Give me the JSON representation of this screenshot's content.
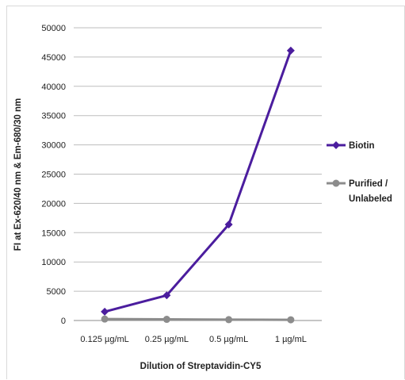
{
  "chart_data": {
    "type": "line",
    "categories": [
      "0.125 µg/mL",
      "0.25 µg/mL",
      "0.5 µg/mL",
      "1 µg/mL"
    ],
    "series": [
      {
        "name": "Biotin",
        "color": "#4b1d9e",
        "marker": "diamond",
        "values": [
          1500,
          4300,
          16400,
          46100
        ]
      },
      {
        "name_lines": [
          "Purified /",
          "Unlabeled"
        ],
        "color": "#8c8c8c",
        "marker": "circle",
        "values": [
          250,
          200,
          150,
          120
        ]
      }
    ],
    "xlabel": "Dilution of Streptavidin-CY5",
    "ylabel": "FI at Ex-620/40 nm & Em-680/30 nm",
    "ylim": [
      0,
      50000
    ],
    "yticks": [
      0,
      5000,
      10000,
      15000,
      20000,
      25000,
      30000,
      35000,
      40000,
      45000,
      50000
    ],
    "grid": "horizontal",
    "legend": "right"
  }
}
